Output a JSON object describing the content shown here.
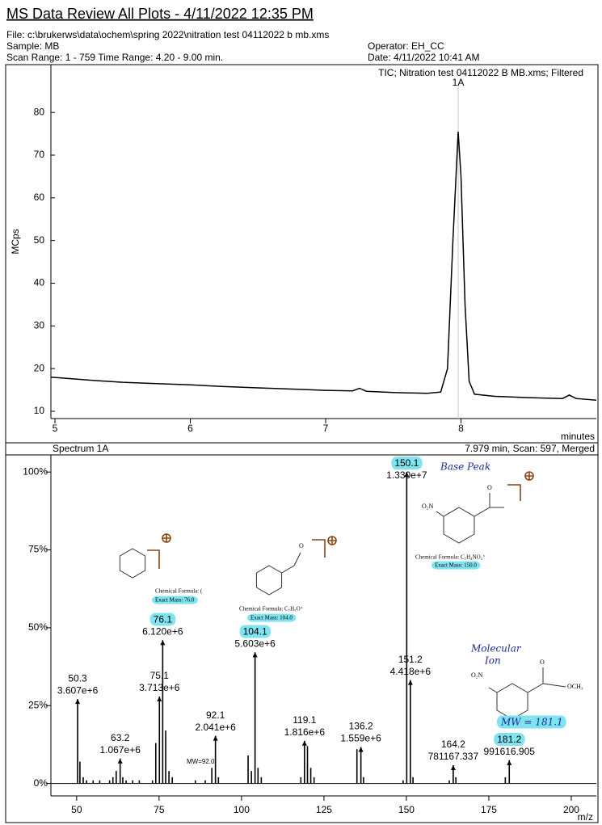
{
  "header": {
    "title": "MS Data Review All Plots - 4/11/2022 12:35 PM",
    "file": "File: c:\\brukerws\\data\\ochem\\spring 2022\\nitration test 04112022 b mb.xms",
    "sample": "Sample: MB",
    "operator": "Operator: EH_CC",
    "scan_range": "Scan Range: 1 - 759 Time Range: 4.20 - 9.00 min.",
    "date": "Date: 4/11/2022 10:41 AM"
  },
  "chart_data": [
    {
      "type": "line",
      "annotation": "TIC;  Nitration test 04112022 B MB.xms;  Filtered",
      "x_label": "minutes",
      "y_label": "MCps",
      "xlim": [
        4.97,
        9.0
      ],
      "ylim": [
        8.3,
        91.2
      ],
      "xticks": [
        5,
        6,
        7,
        8
      ],
      "yticks": [
        10,
        20,
        30,
        40,
        50,
        60,
        70,
        80
      ],
      "marker": {
        "x": 7.979,
        "label": "1A",
        "color": "#c8c8c8"
      },
      "series": [
        {
          "color": "#000000",
          "x": [
            4.97,
            5.25,
            5.5,
            5.75,
            6.0,
            6.25,
            6.5,
            6.75,
            7.0,
            7.2,
            7.25,
            7.3,
            7.5,
            7.75,
            7.85,
            7.9,
            7.94,
            7.979,
            8.0,
            8.03,
            8.06,
            8.1,
            8.25,
            8.5,
            8.75,
            8.8,
            8.85,
            9.0
          ],
          "values": [
            18.0,
            17.3,
            16.8,
            16.5,
            16.2,
            15.8,
            15.5,
            15.2,
            14.9,
            14.8,
            15.4,
            14.7,
            14.4,
            14.2,
            14.5,
            20,
            50,
            75.5,
            65,
            35,
            17,
            14,
            13.5,
            13.2,
            13.0,
            13.8,
            13.0,
            12.6
          ]
        }
      ]
    },
    {
      "type": "stick",
      "title": "Spectrum 1A",
      "subtitle": "7.979 min, Scan: 597, Merged",
      "x_label": "m/z",
      "xlim": [
        42.2,
        207.6
      ],
      "ylim": [
        -4,
        105.5
      ],
      "xticks": [
        50,
        75,
        100,
        125,
        150,
        175,
        200
      ],
      "yticks": [
        {
          "value": 0,
          "label": "0%"
        },
        {
          "value": 25,
          "label": "25%"
        },
        {
          "value": 50,
          "label": "50%"
        },
        {
          "value": 75,
          "label": "75%"
        },
        {
          "value": 100,
          "label": "100%"
        }
      ],
      "highlight_color": "#7fe3f0",
      "series": [
        {
          "color": "#000000",
          "x": [
            50.3,
            63.2,
            75.1,
            76.1,
            92.1,
            104.1,
            119.1,
            136.2,
            150.1,
            151.2,
            164.2,
            181.2
          ],
          "values": [
            27.1,
            8.0,
            27.9,
            46.0,
            15.3,
            42.1,
            13.7,
            11.7,
            100,
            33.2,
            5.87,
            7.46
          ],
          "intensity_labels": [
            "3.607e+6",
            "1.067e+6",
            "3.713e+6",
            "6.120e+6",
            "2.041e+6",
            "5.603e+6",
            "1.816e+6",
            "1.559e+6",
            "1.330e+7",
            "4.418e+6",
            "781167.337",
            "991616.905"
          ],
          "highlight": [
            false,
            false,
            false,
            true,
            false,
            true,
            false,
            false,
            true,
            false,
            false,
            true
          ]
        },
        {
          "color": "#000000",
          "x": [
            51,
            52,
            53,
            55,
            57,
            60,
            61,
            62,
            64,
            65,
            67,
            69,
            73,
            74,
            77,
            78,
            79,
            86,
            89,
            91,
            93,
            102,
            103,
            105,
            106,
            118,
            120,
            121,
            122,
            135,
            137,
            149,
            152,
            163,
            165,
            180
          ],
          "values": [
            7,
            2,
            1,
            1,
            1,
            1,
            2,
            4,
            2,
            1,
            1,
            1,
            1,
            13,
            17,
            4,
            2,
            1,
            1,
            5,
            2,
            9,
            4,
            5,
            2,
            2,
            12,
            5,
            2,
            11,
            2,
            1,
            2,
            1,
            2,
            2
          ]
        }
      ],
      "annotations": [
        {
          "text": "Base Peak",
          "color": "#1a2a9a",
          "highlight": false
        },
        {
          "text": "Molecular",
          "color": "#1a2a9a",
          "highlight": false
        },
        {
          "text": "Ion",
          "color": "#1a2a9a",
          "highlight": false
        },
        {
          "text": "MW = 181.1",
          "color": "#1a2a9a",
          "highlight": true
        },
        {
          "text": "MW=92.0",
          "color": "#000000",
          "highlight": false
        },
        {
          "text": "Chemical Formula: C₇H₄NO₃⁺",
          "color": "#000000",
          "highlight": false
        },
        {
          "text": "Exact Mass: 150.0",
          "color": "#000000",
          "highlight": true
        },
        {
          "text": "Chemical Formula: C₇H₅O⁺",
          "color": "#000000",
          "highlight": false
        },
        {
          "text": "Exact Mass: 104.0",
          "color": "#000000",
          "highlight": true
        },
        {
          "text": "Chemical Formula: (",
          "color": "#000000",
          "highlight": false
        },
        {
          "text": "Exact Mass: 76.0",
          "color": "#000000",
          "highlight": true
        },
        {
          "text": "O₂N",
          "color": "#000000",
          "highlight": false
        },
        {
          "text": "O",
          "color": "#000000",
          "highlight": false
        },
        {
          "text": "O₂N",
          "color": "#000000",
          "highlight": false
        },
        {
          "text": "O",
          "color": "#000000",
          "highlight": false
        },
        {
          "text": "OCH₃",
          "color": "#000000",
          "highlight": false
        },
        {
          "text": "O",
          "color": "#000000",
          "highlight": false
        }
      ]
    }
  ]
}
